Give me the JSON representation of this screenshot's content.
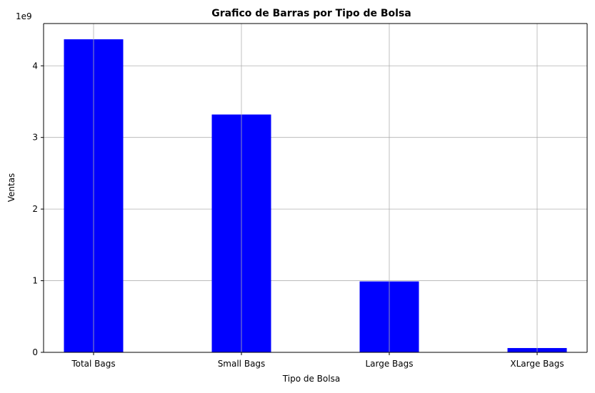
{
  "chart_data": {
    "type": "bar",
    "title": "Grafico de Barras por Tipo de Bolsa",
    "xlabel": "Tipo de Bolsa",
    "ylabel": "Ventas",
    "y_scale_label": "1e9",
    "categories": [
      "Total Bags",
      "Small Bags",
      "Large Bags",
      "XLarge Bags"
    ],
    "values": [
      4370000000,
      3320000000,
      990000000,
      60000000
    ],
    "ylim": [
      0,
      4590000000
    ],
    "yticks": [
      0,
      1000000000,
      2000000000,
      3000000000,
      4000000000
    ],
    "ytick_labels": [
      "0",
      "1",
      "2",
      "3",
      "4"
    ],
    "grid": true,
    "bar_color": "#0000ff",
    "grid_color": "#b0b0b0"
  }
}
